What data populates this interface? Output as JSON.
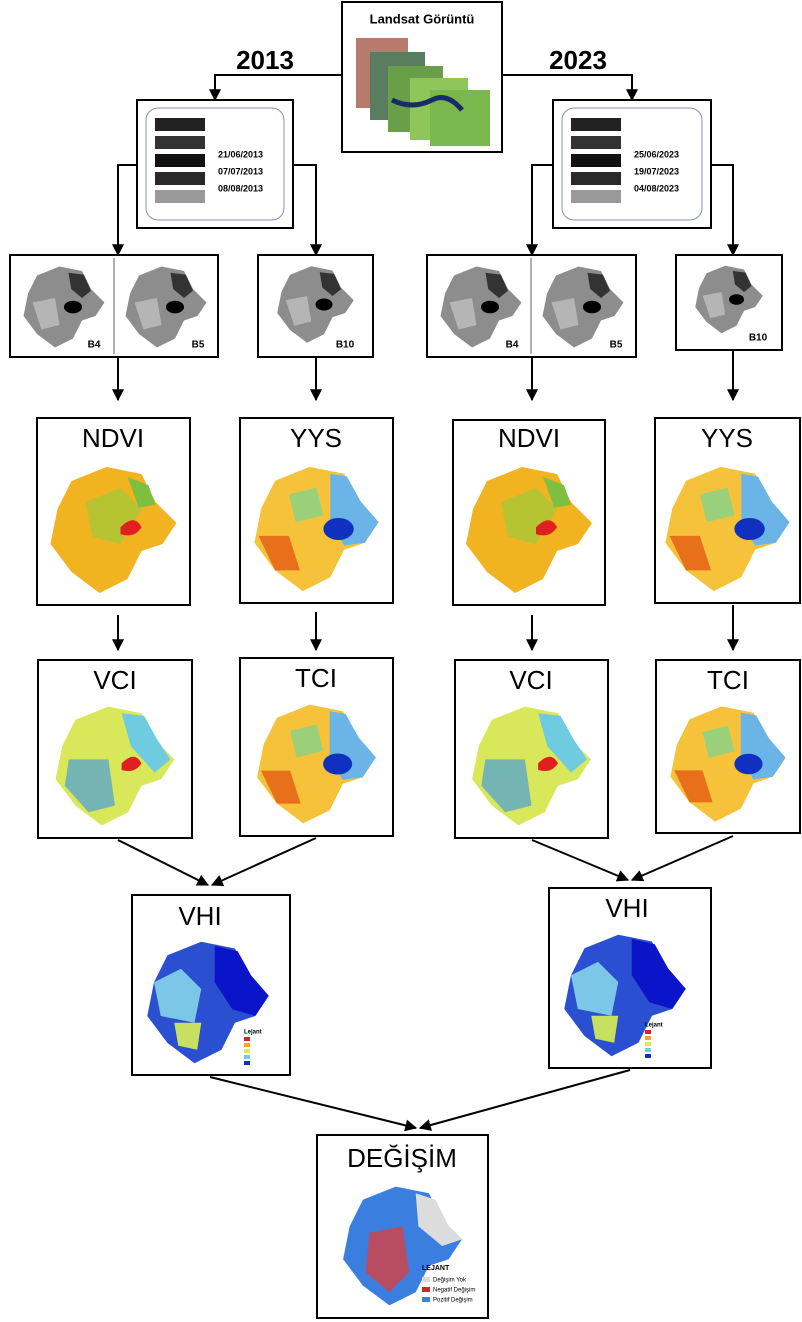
{
  "header": {
    "title": "Landsat Görüntü"
  },
  "branches": [
    {
      "year": "2013",
      "dates": [
        "21/06/2013",
        "07/07/2013",
        "08/08/2013"
      ],
      "bands": [
        "B4",
        "B5",
        "B10"
      ],
      "indices": [
        "NDVI",
        "YYS",
        "VCI",
        "TCI"
      ],
      "vhi": {
        "title": "VHI",
        "legend_title": "Lejant"
      }
    },
    {
      "year": "2023",
      "dates": [
        "25/06/2023",
        "19/07/2023",
        "04/08/2023"
      ],
      "bands": [
        "B4",
        "B5",
        "B10"
      ],
      "indices": [
        "NDVI",
        "YYS",
        "VCI",
        "TCI"
      ],
      "vhi": {
        "title": "VHI",
        "legend_title": "Lejant"
      }
    }
  ],
  "result": {
    "title": "DEĞİŞİM",
    "legend_title": "LEJANT",
    "legend": [
      "Değişim Yok",
      "Negatif Değişim",
      "Pozitif Değişim"
    ]
  }
}
